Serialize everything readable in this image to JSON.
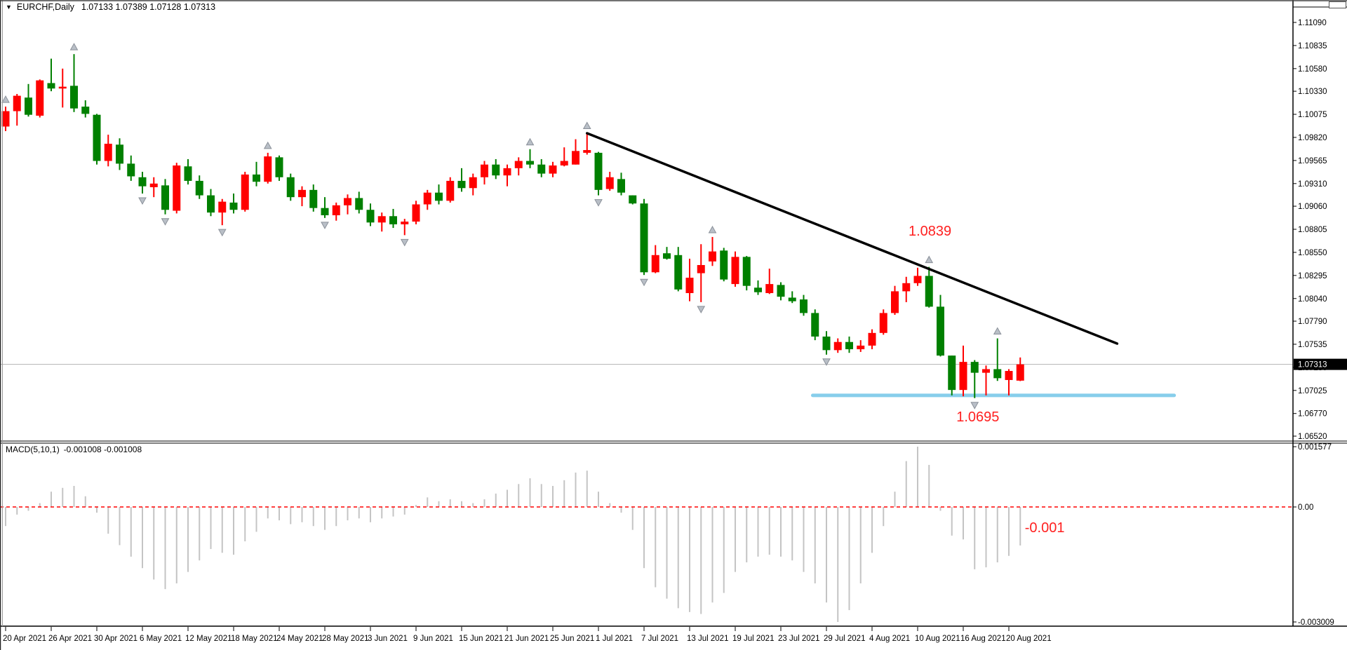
{
  "header": {
    "dropdown_icon": "▼",
    "symbol_period": "EURCHF,Daily",
    "ohlc_text": "1.07133 1.07389 1.07128 1.07313"
  },
  "macd_panel": {
    "indicator_name": "MACD(5,10,1)",
    "values_text": "-0.001008 -0.001008"
  },
  "colors": {
    "bull": "#ff0000",
    "bear": "#008000",
    "macd_bar": "#c4c4c4",
    "zero_line": "#ff0000",
    "trendline": "#000000",
    "support_line": "#87ceeb",
    "annotation": "#ff2020",
    "current_price_line": "#b3b3b3",
    "price_tag_bg": "#000000",
    "price_tag_text": "#ffffff",
    "arrow_fill": "#b9bfc7",
    "arrow_stroke": "#8a9099",
    "axis_text": "#000000",
    "border": "#000000"
  },
  "chart_data": [
    {
      "type": "candlestick",
      "title": "EURCHF,Daily",
      "current_bar": {
        "open": 1.07133,
        "high": 1.07389,
        "low": 1.07128,
        "close": 1.07313
      },
      "y_ticks": [
        "1.11090",
        "1.10835",
        "1.10580",
        "1.10330",
        "1.10075",
        "1.09820",
        "1.09565",
        "1.09310",
        "1.09060",
        "1.08805",
        "1.08550",
        "1.08295",
        "1.08040",
        "1.07790",
        "1.07535",
        "1.07280",
        "1.07025",
        "1.06770",
        "1.06520"
      ],
      "current_price": "1.07313",
      "x_tick_labels": [
        [
          0,
          "20 Apr 2021"
        ],
        [
          4,
          "26 Apr 2021"
        ],
        [
          8,
          "30 Apr 2021"
        ],
        [
          12,
          "6 May 2021"
        ],
        [
          16,
          "12 May 2021"
        ],
        [
          20,
          "18 May 2021"
        ],
        [
          24,
          "24 May 2021"
        ],
        [
          28,
          "28 May 2021"
        ],
        [
          32,
          "3 Jun 2021"
        ],
        [
          36,
          "9 Jun 2021"
        ],
        [
          40,
          "15 Jun 2021"
        ],
        [
          44,
          "21 Jun 2021"
        ],
        [
          48,
          "25 Jun 2021"
        ],
        [
          52,
          "1 Jul 2021"
        ],
        [
          56,
          "7 Jul 2021"
        ],
        [
          60,
          "13 Jul 2021"
        ],
        [
          64,
          "19 Jul 2021"
        ],
        [
          68,
          "23 Jul 2021"
        ],
        [
          72,
          "29 Jul 2021"
        ],
        [
          76,
          "4 Aug 2021"
        ],
        [
          80,
          "10 Aug 2021"
        ],
        [
          84,
          "16 Aug 2021"
        ],
        [
          88,
          "20 Aug 2021"
        ]
      ],
      "ohlc": [
        [
          1.0994,
          1.1016,
          1.0989,
          1.1011
        ],
        [
          1.1011,
          1.103,
          1.0995,
          1.1028
        ],
        [
          1.1026,
          1.1041,
          1.1005,
          1.1007
        ],
        [
          1.1006,
          1.1046,
          1.1004,
          1.1045
        ],
        [
          1.1042,
          1.1069,
          1.1033,
          1.1036
        ],
        [
          1.1036,
          1.1058,
          1.1015,
          1.1038
        ],
        [
          1.1039,
          1.1074,
          1.101,
          1.1014
        ],
        [
          1.1016,
          1.1023,
          1.1004,
          1.1008
        ],
        [
          1.1007,
          1.1008,
          1.0952,
          1.0956
        ],
        [
          1.0956,
          1.0985,
          1.095,
          1.0975
        ],
        [
          1.0974,
          1.0981,
          1.0946,
          1.0953
        ],
        [
          1.0953,
          1.0962,
          1.0934,
          1.0939
        ],
        [
          1.0938,
          1.0944,
          1.092,
          1.0928
        ],
        [
          1.0927,
          1.0938,
          1.0916,
          1.0931
        ],
        [
          1.0929,
          1.0936,
          1.0897,
          1.0902
        ],
        [
          1.0901,
          1.0954,
          1.0898,
          1.0951
        ],
        [
          1.095,
          1.0958,
          1.093,
          1.0934
        ],
        [
          1.0934,
          1.094,
          1.0914,
          1.0918
        ],
        [
          1.0918,
          1.0925,
          1.0895,
          1.0899
        ],
        [
          1.0899,
          1.0914,
          1.0885,
          1.0911
        ],
        [
          1.091,
          1.092,
          1.0898,
          1.0902
        ],
        [
          1.0902,
          1.0944,
          1.09,
          1.0941
        ],
        [
          1.0941,
          1.0955,
          1.0928,
          1.0933
        ],
        [
          1.0933,
          1.0965,
          1.0931,
          1.0961
        ],
        [
          1.096,
          1.0962,
          1.0934,
          1.0938
        ],
        [
          1.0938,
          1.0942,
          1.0912,
          1.0916
        ],
        [
          1.0916,
          1.0928,
          1.0906,
          1.0924
        ],
        [
          1.0924,
          1.093,
          1.09,
          1.0904
        ],
        [
          1.0904,
          1.0916,
          1.0893,
          1.0896
        ],
        [
          1.0896,
          1.091,
          1.089,
          1.0907
        ],
        [
          1.0907,
          1.0919,
          1.0897,
          1.0915
        ],
        [
          1.0915,
          1.0922,
          1.0898,
          1.0902
        ],
        [
          1.0902,
          1.0909,
          1.0884,
          1.0888
        ],
        [
          1.0888,
          1.0899,
          1.0878,
          1.0895
        ],
        [
          1.0895,
          1.0903,
          1.0882,
          1.0886
        ],
        [
          1.0886,
          1.0892,
          1.0874,
          1.0889
        ],
        [
          1.0889,
          1.0912,
          1.0886,
          1.0908
        ],
        [
          1.0908,
          1.0924,
          1.0902,
          1.0921
        ],
        [
          1.0921,
          1.093,
          1.0908,
          1.0912
        ],
        [
          1.0912,
          1.0938,
          1.091,
          1.0934
        ],
        [
          1.0934,
          1.0948,
          1.0922,
          1.0926
        ],
        [
          1.0926,
          1.0942,
          1.0918,
          1.0938
        ],
        [
          1.0938,
          1.0956,
          1.093,
          1.0952
        ],
        [
          1.0952,
          1.0958,
          1.0936,
          1.094
        ],
        [
          1.094,
          1.0952,
          1.0928,
          1.0948
        ],
        [
          1.0948,
          1.096,
          1.094,
          1.0956
        ],
        [
          1.0956,
          1.0969,
          1.0948,
          1.0952
        ],
        [
          1.0952,
          1.0958,
          1.0938,
          1.0942
        ],
        [
          1.0942,
          1.0955,
          1.0938,
          1.0951
        ],
        [
          1.0951,
          1.0971,
          1.095,
          1.0956
        ],
        [
          1.0952,
          1.098,
          1.0952,
          1.0967
        ],
        [
          1.0965,
          1.0987,
          1.0963,
          1.0968
        ],
        [
          1.0965,
          1.0966,
          1.0918,
          1.0924
        ],
        [
          1.0925,
          1.0944,
          1.0923,
          1.0938
        ],
        [
          1.0936,
          1.0943,
          1.0918,
          1.0921
        ],
        [
          1.0918,
          1.0918,
          1.0908,
          1.0909
        ],
        [
          1.0909,
          1.0914,
          1.083,
          1.0833
        ],
        [
          1.0833,
          1.0863,
          1.0832,
          1.0852
        ],
        [
          1.0854,
          1.0861,
          1.0847,
          1.0848
        ],
        [
          1.0852,
          1.0861,
          1.0812,
          1.0814
        ],
        [
          1.081,
          1.0848,
          1.0801,
          1.0827
        ],
        [
          1.0832,
          1.0864,
          1.08,
          1.0841
        ],
        [
          1.0845,
          1.0872,
          1.084,
          1.0856
        ],
        [
          1.0857,
          1.086,
          1.0823,
          1.0825
        ],
        [
          1.082,
          1.0856,
          1.0817,
          1.085
        ],
        [
          1.085,
          1.0851,
          1.0813,
          1.0818
        ],
        [
          1.0816,
          1.0824,
          1.0808,
          1.0811
        ],
        [
          1.081,
          1.0837,
          1.0809,
          1.082
        ],
        [
          1.0819,
          1.0822,
          1.0802,
          1.0806
        ],
        [
          1.0805,
          1.0812,
          1.0799,
          1.0801
        ],
        [
          1.0803,
          1.0808,
          1.0785,
          1.0788
        ],
        [
          1.0788,
          1.0792,
          1.0758,
          1.0762
        ],
        [
          1.0762,
          1.0768,
          1.0742,
          1.0747
        ],
        [
          1.0747,
          1.076,
          1.0744,
          1.0756
        ],
        [
          1.0756,
          1.0762,
          1.0744,
          1.0748
        ],
        [
          1.0748,
          1.0758,
          1.0745,
          1.0752
        ],
        [
          1.0752,
          1.077,
          1.0748,
          1.0766
        ],
        [
          1.0766,
          1.0792,
          1.0764,
          1.0788
        ],
        [
          1.0788,
          1.0818,
          1.0786,
          1.0812
        ],
        [
          1.0812,
          1.0828,
          1.08,
          1.0821
        ],
        [
          1.0821,
          1.0838,
          1.0818,
          1.0829
        ],
        [
          1.0829,
          1.0839,
          1.0794,
          1.0795
        ],
        [
          1.0795,
          1.0808,
          1.074,
          1.0741
        ],
        [
          1.0741,
          1.0741,
          1.0697,
          1.0703
        ],
        [
          1.0703,
          1.0752,
          1.0696,
          1.0734
        ],
        [
          1.0734,
          1.0736,
          1.0694,
          1.0722
        ],
        [
          1.0722,
          1.073,
          1.0697,
          1.0726
        ],
        [
          1.0726,
          1.076,
          1.0713,
          1.0716
        ],
        [
          1.0714,
          1.0726,
          1.0697,
          1.0724
        ],
        [
          1.07133,
          1.07389,
          1.07128,
          1.07313
        ]
      ],
      "fractal_up_bars": [
        0,
        6,
        23,
        46,
        51,
        62,
        81,
        87
      ],
      "fractal_down_bars": [
        12,
        14,
        19,
        28,
        35,
        52,
        56,
        61,
        72,
        85
      ],
      "trendline": {
        "start_bar": 51,
        "start_price": 1.09866,
        "end_bar": 97.5,
        "end_price": 1.07542
      },
      "support_line": {
        "price": 1.0697,
        "start_bar": 70.8,
        "end_bar": 102.5
      },
      "annotations": [
        {
          "text": "1.0839",
          "x_bar": 79.2,
          "price": 1.0878
        },
        {
          "text": "1.0695",
          "x_bar": 83.4,
          "price": 1.0673
        }
      ]
    },
    {
      "type": "bar",
      "name": "MACD(5,10,1)",
      "ylim": [
        -0.003009,
        0.001577
      ],
      "y_ticks": [
        "0.001577",
        "0.00",
        "-0.003009"
      ],
      "zero_line": true,
      "legend_position": "top-left",
      "current_value": -0.001008,
      "values": [
        -0.0005,
        -0.0002,
        -0.0001,
        0.0001,
        0.0004,
        0.0005,
        0.00055,
        0.00028,
        -0.00015,
        -0.0007,
        -0.001,
        -0.0013,
        -0.0016,
        -0.0019,
        -0.00215,
        -0.002,
        -0.0017,
        -0.0014,
        -0.0011,
        -0.0012,
        -0.00125,
        -0.0009,
        -0.00065,
        -0.0003,
        -0.00035,
        -0.00045,
        -0.0004,
        -0.0005,
        -0.0006,
        -0.0005,
        -0.00035,
        -0.0003,
        -0.0004,
        -0.0003,
        -0.00025,
        -0.0002,
        5e-05,
        0.00025,
        0.00015,
        0.0002,
        0.00015,
        0.0001,
        0.0002,
        0.00035,
        0.00045,
        0.0006,
        0.00075,
        0.0006,
        0.00055,
        0.0007,
        0.0009,
        0.00095,
        0.0004,
        0.0001,
        -0.00015,
        -0.0006,
        -0.0016,
        -0.0021,
        -0.0024,
        -0.00265,
        -0.00275,
        -0.0028,
        -0.0025,
        -0.00225,
        -0.0017,
        -0.00145,
        -0.0013,
        -0.00125,
        -0.0013,
        -0.0014,
        -0.0017,
        -0.002,
        -0.0025,
        -0.003009,
        -0.0027,
        -0.002,
        -0.0012,
        -0.0005,
        0.0004,
        0.0012,
        0.001577,
        0.0011,
        -0.0001,
        -0.00075,
        -0.00085,
        -0.00163,
        -0.00158,
        -0.00145,
        -0.00128,
        -0.001008
      ],
      "annotations": [
        {
          "text": "-0.001",
          "x_bar": 89.4,
          "value": -0.00055
        }
      ]
    }
  ]
}
